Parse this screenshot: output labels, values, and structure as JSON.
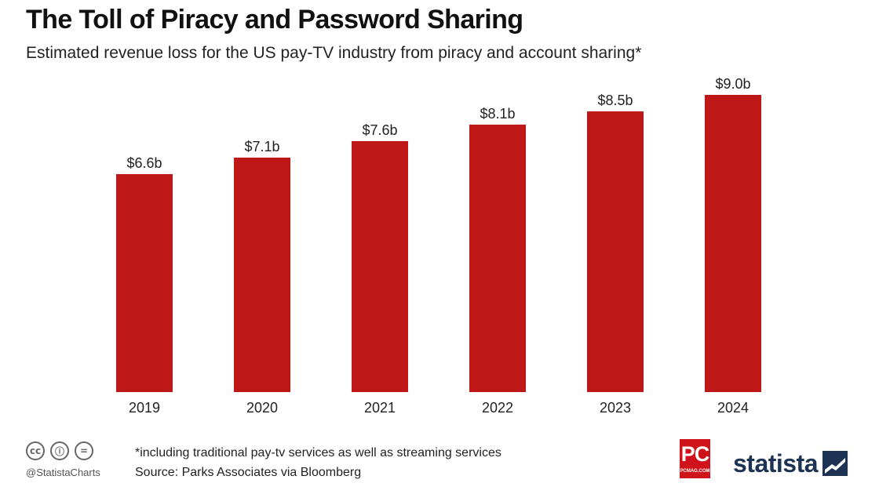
{
  "header": {
    "title": "The Toll of Piracy and Password Sharing",
    "subtitle": "Estimated revenue loss for the US pay-TV industry from piracy and account sharing*"
  },
  "chart_data": {
    "type": "bar",
    "title": "The Toll of Piracy and Password Sharing",
    "subtitle": "Estimated revenue loss for the US pay-TV industry from piracy and account sharing*",
    "categories": [
      "2019",
      "2020",
      "2021",
      "2022",
      "2023",
      "2024"
    ],
    "values": [
      6.6,
      7.1,
      7.6,
      8.1,
      8.5,
      9.0
    ],
    "value_labels": [
      "$6.6b",
      "$7.1b",
      "$7.6b",
      "$8.1b",
      "$8.5b",
      "$9.0b"
    ],
    "unit": "billion USD",
    "xlabel": "",
    "ylabel": "",
    "ylim": [
      0,
      9.0
    ],
    "grid": false,
    "legend": "none",
    "bar_color": "#bd1717"
  },
  "footer": {
    "note": "*including traditional pay-tv services as well as streaming services",
    "source": "Source: Parks Associates via Bloomberg",
    "handle": "@StatistaCharts",
    "license_icons": [
      "cc-icon",
      "by-icon",
      "nd-icon"
    ],
    "license_icon_glyphs": [
      "cc",
      "ⓘ",
      "="
    ],
    "pc_logo": "PC",
    "pc_logo_sub": "PCMAG.COM",
    "statista_logo": "statista"
  },
  "colors": {
    "bar": "#bd1717",
    "text": "#222222",
    "statista_navy": "#1e3354",
    "pc_red": "#d0121a"
  }
}
